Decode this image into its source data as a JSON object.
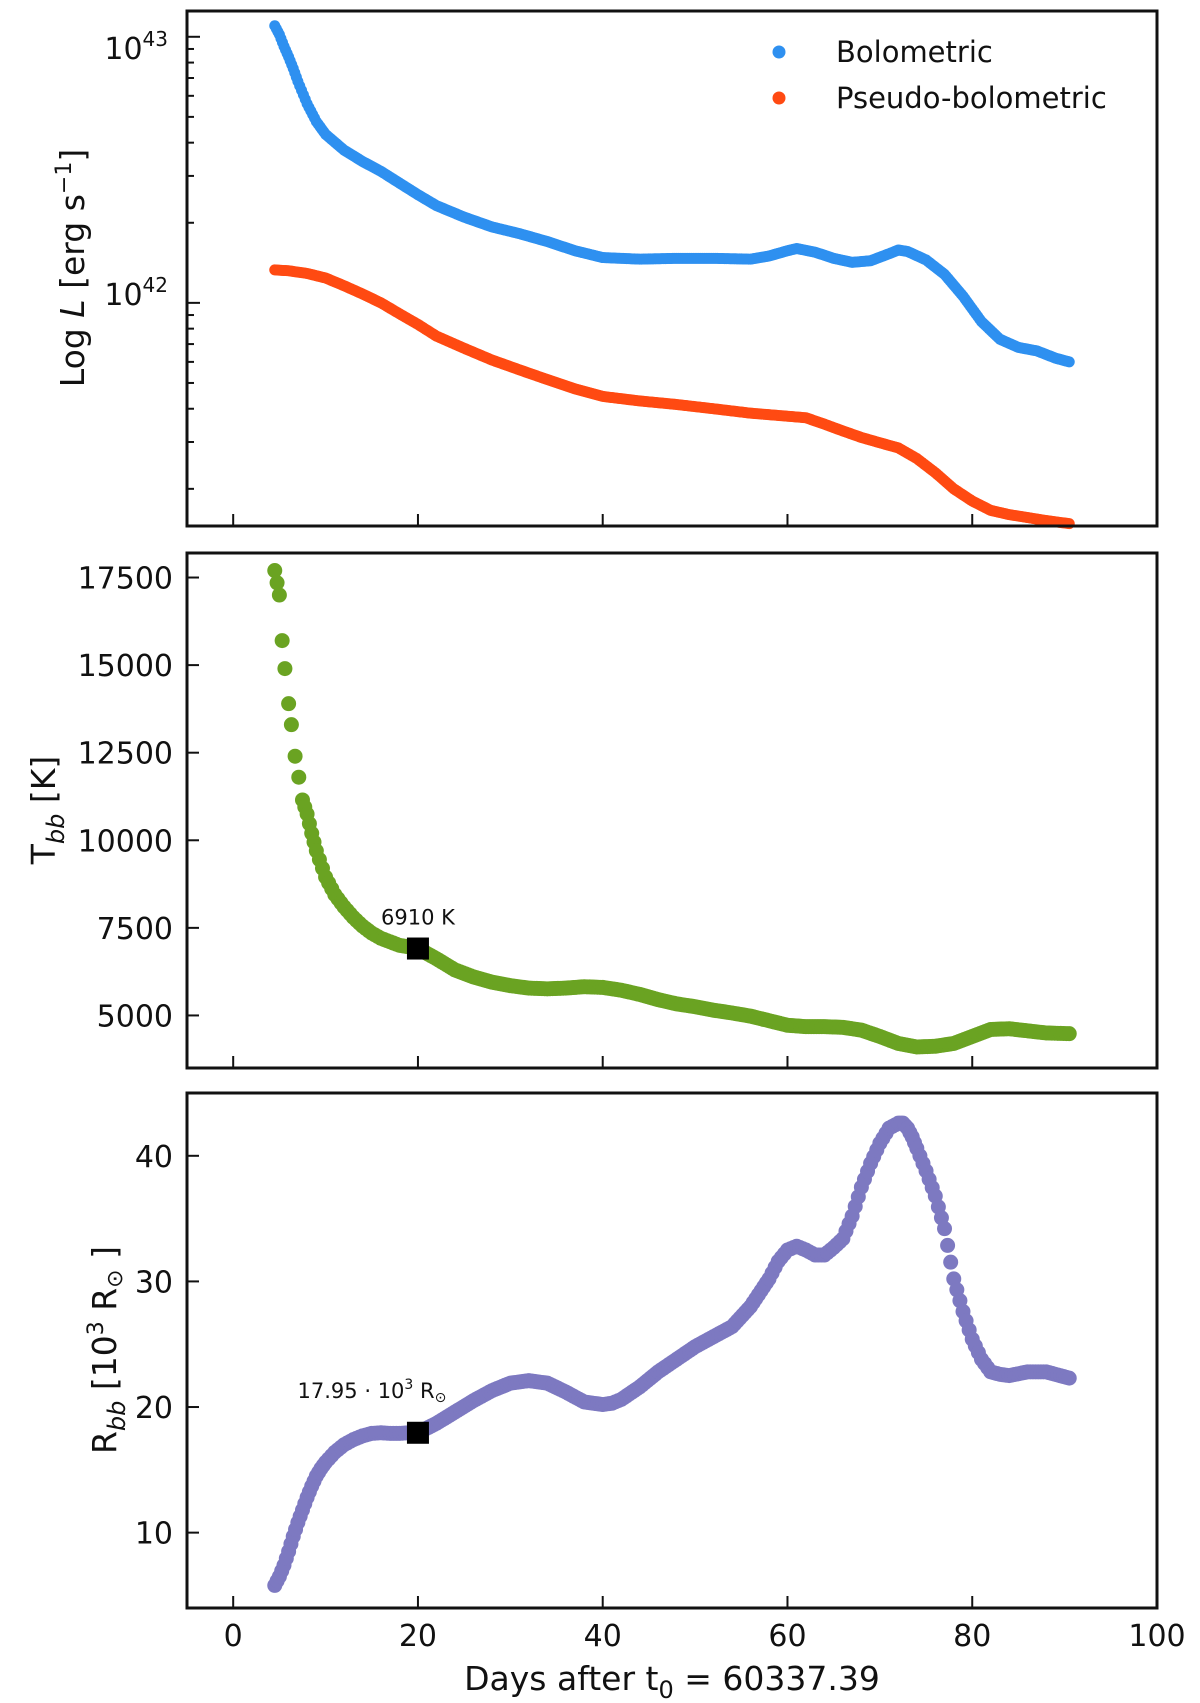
{
  "chart_data": [
    {
      "type": "scatter",
      "yscale": "log",
      "ylabel_prefix": "Log ",
      "ylabel_var": "L",
      "ylabel_unit": " [erg s",
      "ylabel_exp": "−1",
      "ylabel_close": "]",
      "xlim": [
        -5,
        100
      ],
      "ylim": [
        1.45e+41,
        1.25e+43
      ],
      "xticks": [
        0,
        20,
        40,
        60,
        80,
        100
      ],
      "yticks_major": [
        {
          "base": "10",
          "exp": "42",
          "value": 1e+42
        },
        {
          "base": "10",
          "exp": "43",
          "value": 1e+43
        }
      ],
      "legend": {
        "position": "top-right",
        "entries": [
          "Bolometric",
          "Pseudo-bolometric"
        ]
      },
      "series": [
        {
          "name": "Bolometric",
          "color": "#2E90F0",
          "x": [
            4.5,
            5,
            5.5,
            6,
            6.5,
            7,
            8,
            9,
            10,
            12,
            14,
            16,
            18,
            20,
            22,
            25,
            28,
            31,
            34,
            37,
            40,
            44,
            48,
            52,
            56,
            58,
            60,
            61,
            63,
            65,
            67,
            69,
            71,
            72,
            73,
            75,
            77,
            79,
            81,
            83,
            85,
            87,
            89,
            90.5
          ],
          "y": [
            1.1e+43,
            1.02e+43,
            9.2e+42,
            8.4e+42,
            7.6e+42,
            6.8e+42,
            5.6e+42,
            4.8e+42,
            4.3e+42,
            3.75e+42,
            3.4e+42,
            3.12e+42,
            2.82e+42,
            2.55e+42,
            2.32e+42,
            2.1e+42,
            1.93e+42,
            1.82e+42,
            1.7e+42,
            1.57e+42,
            1.48e+42,
            1.46e+42,
            1.47e+42,
            1.47e+42,
            1.46e+42,
            1.5e+42,
            1.57e+42,
            1.6e+42,
            1.55e+42,
            1.47e+42,
            1.42e+42,
            1.44e+42,
            1.53e+42,
            1.58e+42,
            1.56e+42,
            1.45e+42,
            1.28e+42,
            1.06e+42,
            8.5e+41,
            7.3e+41,
            6.8e+41,
            6.6e+41,
            6.2e+41,
            6e+41
          ]
        },
        {
          "name": "Pseudo-bolometric",
          "color": "#FF4A12",
          "x": [
            4.5,
            6,
            8,
            10,
            12,
            14,
            16,
            18,
            20,
            22,
            25,
            28,
            31,
            34,
            37,
            40,
            44,
            48,
            52,
            56,
            60,
            62,
            64,
            66,
            68,
            70,
            72,
            74,
            76,
            78,
            80,
            82,
            84,
            86,
            88,
            90.5
          ],
          "y": [
            1.33e+42,
            1.32e+42,
            1.29e+42,
            1.24e+42,
            1.16e+42,
            1.08e+42,
            1e+42,
            9.1e+41,
            8.3e+41,
            7.5e+41,
            6.75e+41,
            6.1e+41,
            5.6e+41,
            5.15e+41,
            4.75e+41,
            4.45e+41,
            4.28e+41,
            4.15e+41,
            4e+41,
            3.85e+41,
            3.75e+41,
            3.7e+41,
            3.5e+41,
            3.3e+41,
            3.12e+41,
            2.98e+41,
            2.85e+41,
            2.6e+41,
            2.3e+41,
            2e+41,
            1.8e+41,
            1.66e+41,
            1.6e+41,
            1.56e+41,
            1.52e+41,
            1.48e+41
          ]
        }
      ]
    },
    {
      "type": "scatter",
      "ylabel_base": "T",
      "ylabel_sub": "bb",
      "ylabel_unit": " [K]",
      "xlim": [
        -5,
        100
      ],
      "ylim": [
        3500,
        18200
      ],
      "xticks": [
        0,
        20,
        40,
        60,
        80,
        100
      ],
      "yticks": [
        5000,
        7500,
        10000,
        12500,
        15000,
        17500
      ],
      "series": [
        {
          "name": "T_bb",
          "color": "#6AA322",
          "x": [
            4.5,
            5,
            5.3,
            5.6,
            6,
            6.3,
            6.7,
            7.1,
            7.5,
            8,
            8.5,
            9,
            10,
            11,
            12,
            13,
            14,
            15,
            16,
            17,
            18,
            19,
            20,
            22,
            24,
            26,
            28,
            30,
            32,
            34,
            36,
            38,
            40,
            42,
            44,
            46,
            48,
            50,
            52,
            54,
            56,
            58,
            60,
            62,
            64,
            66,
            68,
            70,
            72,
            74,
            76,
            78,
            80,
            82,
            84,
            86,
            88,
            90.5
          ],
          "y": [
            17700,
            17000,
            15700,
            14900,
            13900,
            13300,
            12400,
            11800,
            11150,
            10750,
            10200,
            9700,
            8950,
            8450,
            8100,
            7800,
            7550,
            7350,
            7200,
            7100,
            7000,
            6960,
            6910,
            6620,
            6300,
            6100,
            5950,
            5850,
            5780,
            5760,
            5780,
            5820,
            5800,
            5720,
            5600,
            5450,
            5330,
            5250,
            5150,
            5070,
            4980,
            4850,
            4720,
            4680,
            4680,
            4660,
            4580,
            4400,
            4200,
            4100,
            4120,
            4200,
            4400,
            4600,
            4620,
            4560,
            4500,
            4480
          ]
        }
      ],
      "marker": {
        "x": 20,
        "y": 6910,
        "label": "6910 K"
      }
    },
    {
      "type": "scatter",
      "ylabel_base": "R",
      "ylabel_sub": "bb",
      "ylabel_unit_open": " [10",
      "ylabel_unit_exp": "3",
      "ylabel_unit_close": " R",
      "ylabel_sun": "⊙",
      "ylabel_close": " ]",
      "xlim": [
        -5,
        100
      ],
      "ylim": [
        4,
        45
      ],
      "xticks": [
        0,
        20,
        40,
        60,
        80,
        100
      ],
      "yticks": [
        10,
        20,
        30,
        40
      ],
      "xlabel_main": "Days after t",
      "xlabel_sub": "0",
      "xlabel_rest": " = 60337.39",
      "series": [
        {
          "name": "R_bb",
          "color": "#7D79C1",
          "x": [
            4.5,
            5,
            5.5,
            6,
            6.5,
            7,
            7.5,
            8,
            8.5,
            9,
            9.5,
            10,
            11,
            12,
            13,
            14,
            15,
            16,
            17,
            18,
            19,
            20,
            22,
            24,
            26,
            28,
            30,
            32,
            34,
            36,
            38,
            40,
            41,
            42,
            44,
            46,
            48,
            50,
            52,
            54,
            56,
            58,
            59,
            60,
            61,
            62,
            63,
            64,
            65,
            66,
            67,
            68,
            69,
            70,
            71,
            72,
            72.5,
            73,
            73.5,
            74,
            75,
            76,
            77,
            78,
            79,
            80,
            81,
            82,
            83,
            84,
            86,
            88,
            90.5
          ],
          "y": [
            5.8,
            6.5,
            7.4,
            8.5,
            9.7,
            10.8,
            11.8,
            12.8,
            13.7,
            14.5,
            15.1,
            15.6,
            16.4,
            17.0,
            17.4,
            17.7,
            17.9,
            17.95,
            17.9,
            17.9,
            17.95,
            17.95,
            18.7,
            19.6,
            20.5,
            21.3,
            21.9,
            22.1,
            21.9,
            21.2,
            20.4,
            20.2,
            20.3,
            20.6,
            21.6,
            22.8,
            23.8,
            24.8,
            25.6,
            26.4,
            28.0,
            30.2,
            31.6,
            32.5,
            32.8,
            32.5,
            32.1,
            32.1,
            32.7,
            33.4,
            35.2,
            37.5,
            39.4,
            41.0,
            42.2,
            42.6,
            42.6,
            42.2,
            41.5,
            40.6,
            38.8,
            36.8,
            34.2,
            30.2,
            27.6,
            25.4,
            23.8,
            22.8,
            22.6,
            22.5,
            22.8,
            22.8,
            22.3
          ]
        }
      ],
      "marker": {
        "x": 20,
        "y": 17.95,
        "label_a": "17.95 · ",
        "label_b": "10",
        "label_exp": "3",
        "label_c": " R",
        "label_sun": "⊙"
      }
    }
  ]
}
